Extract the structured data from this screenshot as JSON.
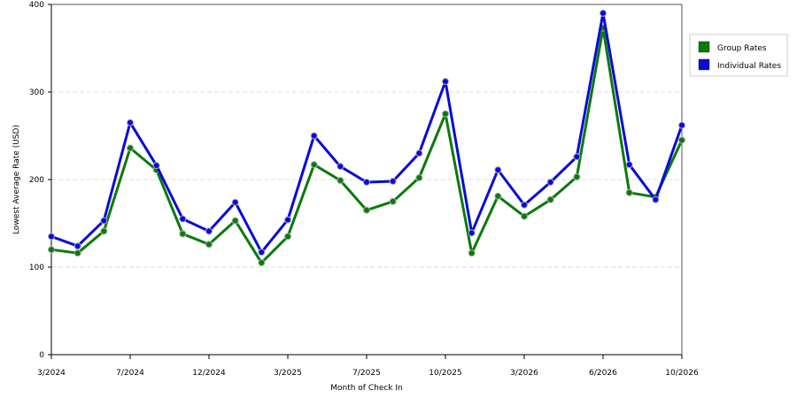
{
  "chart_data": {
    "type": "line",
    "xlabel": "Month of Check In",
    "ylabel": "Lowest Average Rate (USD)",
    "ylim": [
      0,
      400
    ],
    "yticks": [
      0,
      100,
      200,
      300,
      400
    ],
    "grid": "horizontal dashed",
    "legend_position": "right",
    "x_tick_labels": [
      "3/2024",
      "7/2024",
      "12/2024",
      "3/2025",
      "7/2025",
      "10/2025",
      "3/2026",
      "6/2026",
      "10/2026"
    ],
    "series": [
      {
        "name": "Group Rates",
        "color": "#0a7a0a",
        "values": [
          120,
          116,
          141,
          236,
          211,
          138,
          126,
          153,
          105,
          135,
          217,
          199,
          165,
          175,
          202,
          275,
          116,
          181,
          158,
          177,
          203,
          373,
          185,
          180,
          245
        ]
      },
      {
        "name": "Individual Rates",
        "color": "#0a0ad8",
        "values": [
          135,
          124,
          153,
          265,
          216,
          155,
          141,
          174,
          117,
          154,
          250,
          215,
          197,
          198,
          230,
          312,
          139,
          211,
          171,
          197,
          226,
          390,
          217,
          177,
          262
        ]
      }
    ]
  }
}
